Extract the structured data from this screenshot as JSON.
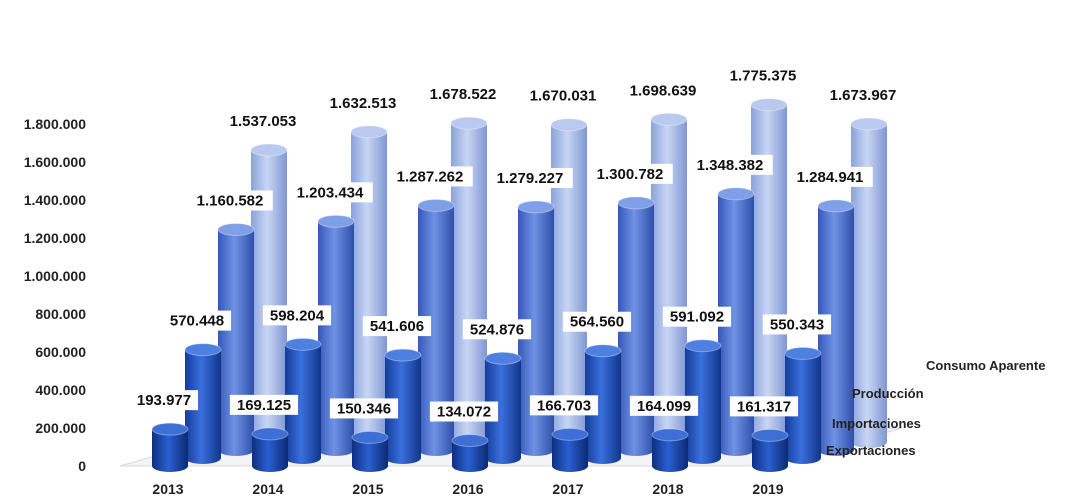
{
  "chart_data": {
    "type": "bar",
    "style": "3d-cylinder",
    "categories": [
      "2013",
      "2014",
      "2015",
      "2016",
      "2017",
      "2018",
      "2019"
    ],
    "series": [
      {
        "name": "Exportaciones",
        "values": [
          193977,
          169125,
          150346,
          134072,
          166703,
          164099,
          161317
        ],
        "labels": [
          "193.977",
          "169.125",
          "150.346",
          "134.072",
          "166.703",
          "164.099",
          "161.317"
        ]
      },
      {
        "name": "Importaciones",
        "values": [
          570448,
          598204,
          541606,
          524876,
          564560,
          591092,
          550343
        ],
        "labels": [
          "570.448",
          "598.204",
          "541.606",
          "524.876",
          "564.560",
          "591.092",
          "550.343"
        ]
      },
      {
        "name": "Producción",
        "values": [
          1160582,
          1203434,
          1287262,
          1279227,
          1300782,
          1348382,
          1284941
        ],
        "labels": [
          "1.160.582",
          "1.203.434",
          "1.287.262",
          "1.279.227",
          "1.300.782",
          "1.348.382",
          "1.284.941"
        ]
      },
      {
        "name": "Consumo Aparente",
        "values": [
          1537053,
          1632513,
          1678522,
          1670031,
          1698639,
          1775375,
          1673967
        ],
        "labels": [
          "1.537.053",
          "1.632.513",
          "1.678.522",
          "1.670.031",
          "1.698.639",
          "1.775.375",
          "1.673.967"
        ]
      }
    ],
    "ylim": [
      0,
      1800000
    ],
    "yticks": [
      0,
      200000,
      400000,
      600000,
      800000,
      1000000,
      1200000,
      1400000,
      1600000,
      1800000
    ],
    "ytick_labels": [
      "0",
      "200.000",
      "400.000",
      "600.000",
      "800.000",
      "1.000.000",
      "1.200.000",
      "1.400.000",
      "1.600.000",
      "1.800.000"
    ],
    "colors": [
      "#1f4fb0",
      "#2e62c8",
      "#5a80d8",
      "#a9bde9"
    ],
    "grid": false,
    "legend": "depth-axis-right"
  }
}
